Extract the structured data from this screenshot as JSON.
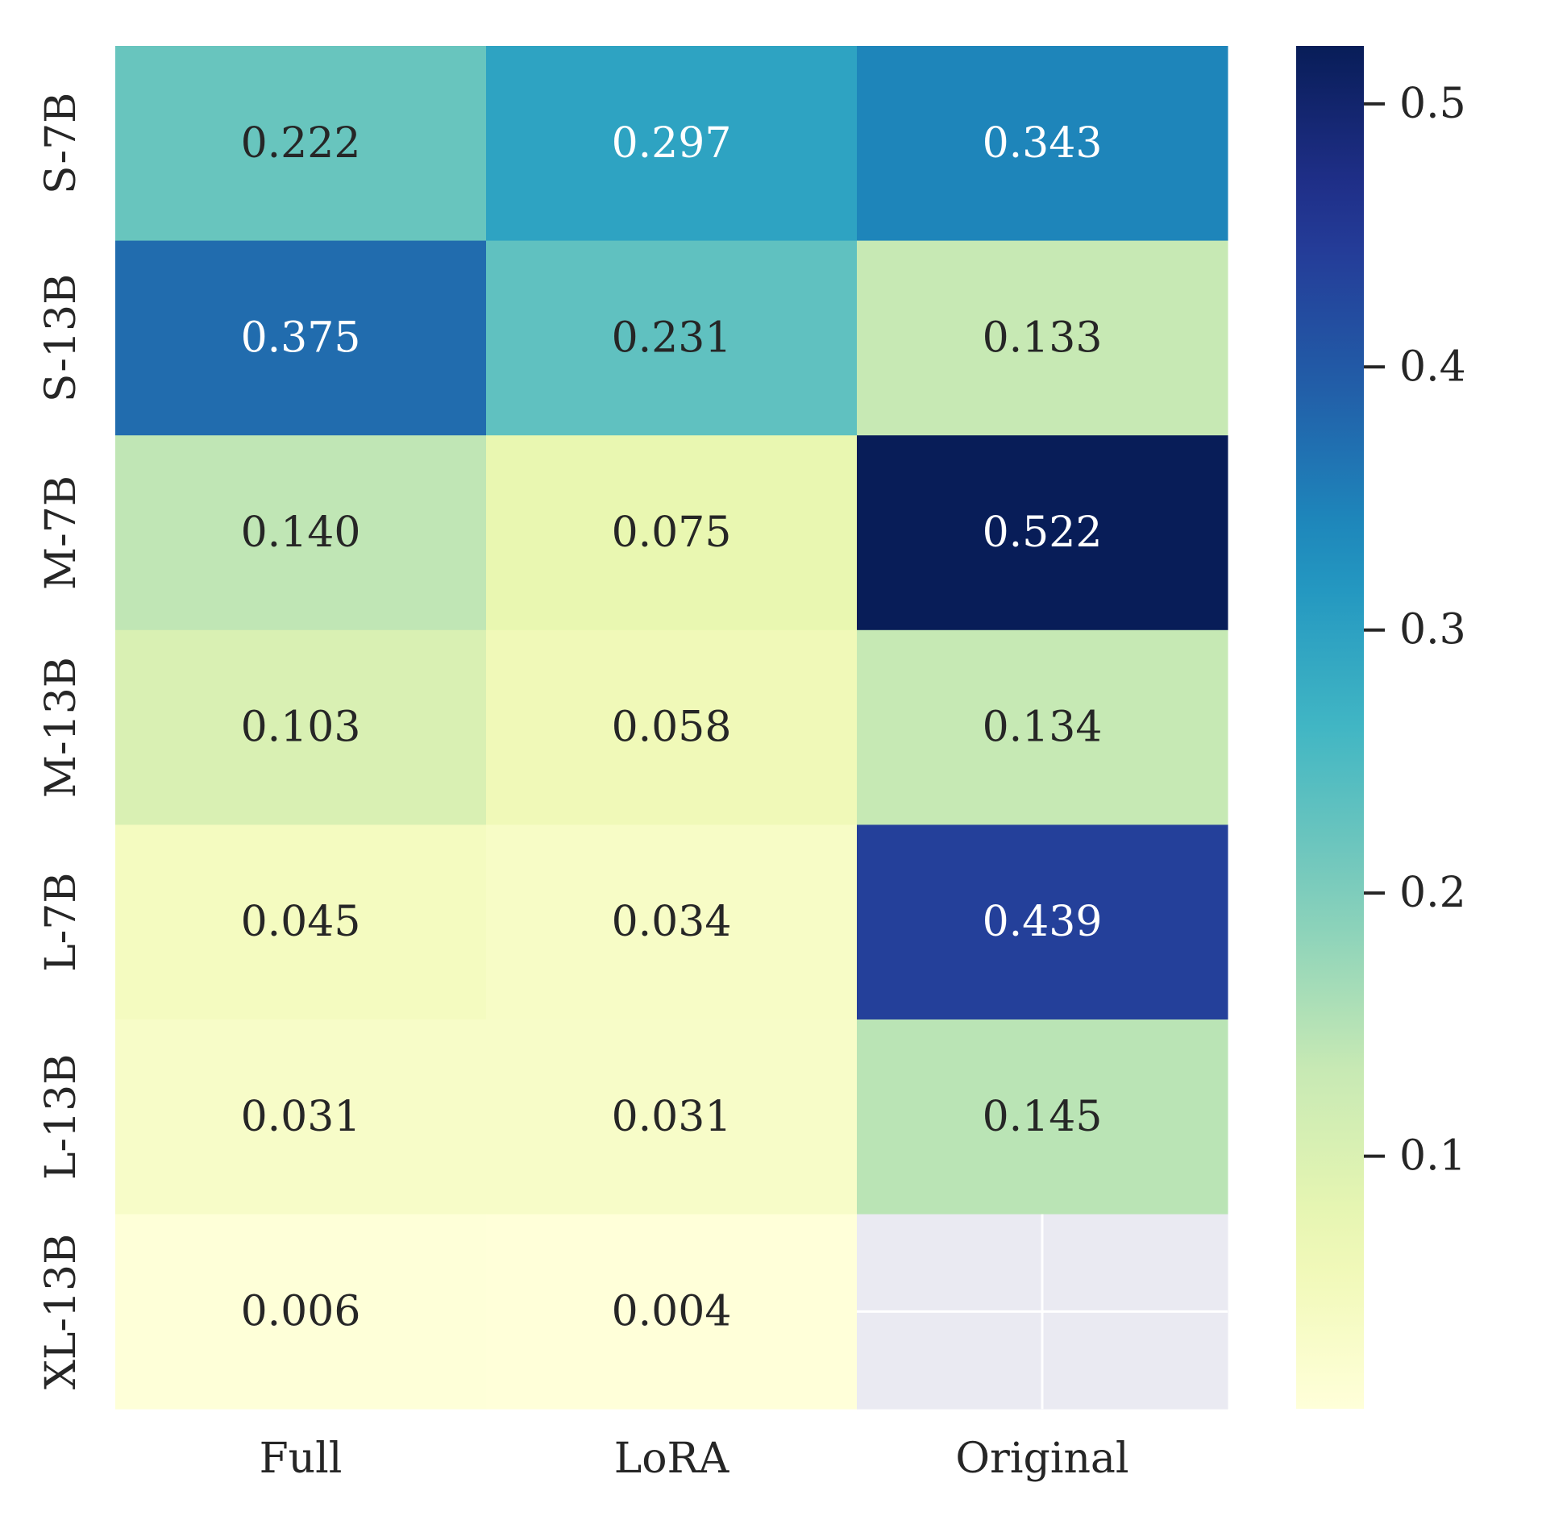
{
  "chart_data": {
    "type": "heatmap",
    "title": "",
    "xlabel": "",
    "ylabel": "",
    "x_labels": [
      "Full",
      "LoRA",
      "Original"
    ],
    "y_labels": [
      "S-7B",
      "S-13B",
      "M-7B",
      "M-13B",
      "L-7B",
      "L-13B",
      "XL-13B"
    ],
    "values": [
      [
        0.222,
        0.297,
        0.343
      ],
      [
        0.375,
        0.231,
        0.133
      ],
      [
        0.14,
        0.075,
        0.522
      ],
      [
        0.103,
        0.058,
        0.134
      ],
      [
        0.045,
        0.034,
        0.439
      ],
      [
        0.031,
        0.031,
        0.145
      ],
      [
        0.006,
        0.004,
        null
      ]
    ],
    "value_labels": [
      [
        "0.222",
        "0.297",
        "0.343"
      ],
      [
        "0.375",
        "0.231",
        "0.133"
      ],
      [
        "0.140",
        "0.075",
        "0.522"
      ],
      [
        "0.103",
        "0.058",
        "0.134"
      ],
      [
        "0.045",
        "0.034",
        "0.439"
      ],
      [
        "0.031",
        "0.031",
        "0.145"
      ],
      [
        "0.006",
        "0.004",
        ""
      ]
    ],
    "colormap": "YlGnBu",
    "colorbar": {
      "range": [
        0.004,
        0.522
      ],
      "ticks": [
        0.1,
        0.2,
        0.3,
        0.4,
        0.5
      ],
      "tick_labels": [
        "0.1",
        "0.2",
        "0.3",
        "0.4",
        "0.5"
      ]
    },
    "missing_cell_color": "#eaeaf2"
  }
}
